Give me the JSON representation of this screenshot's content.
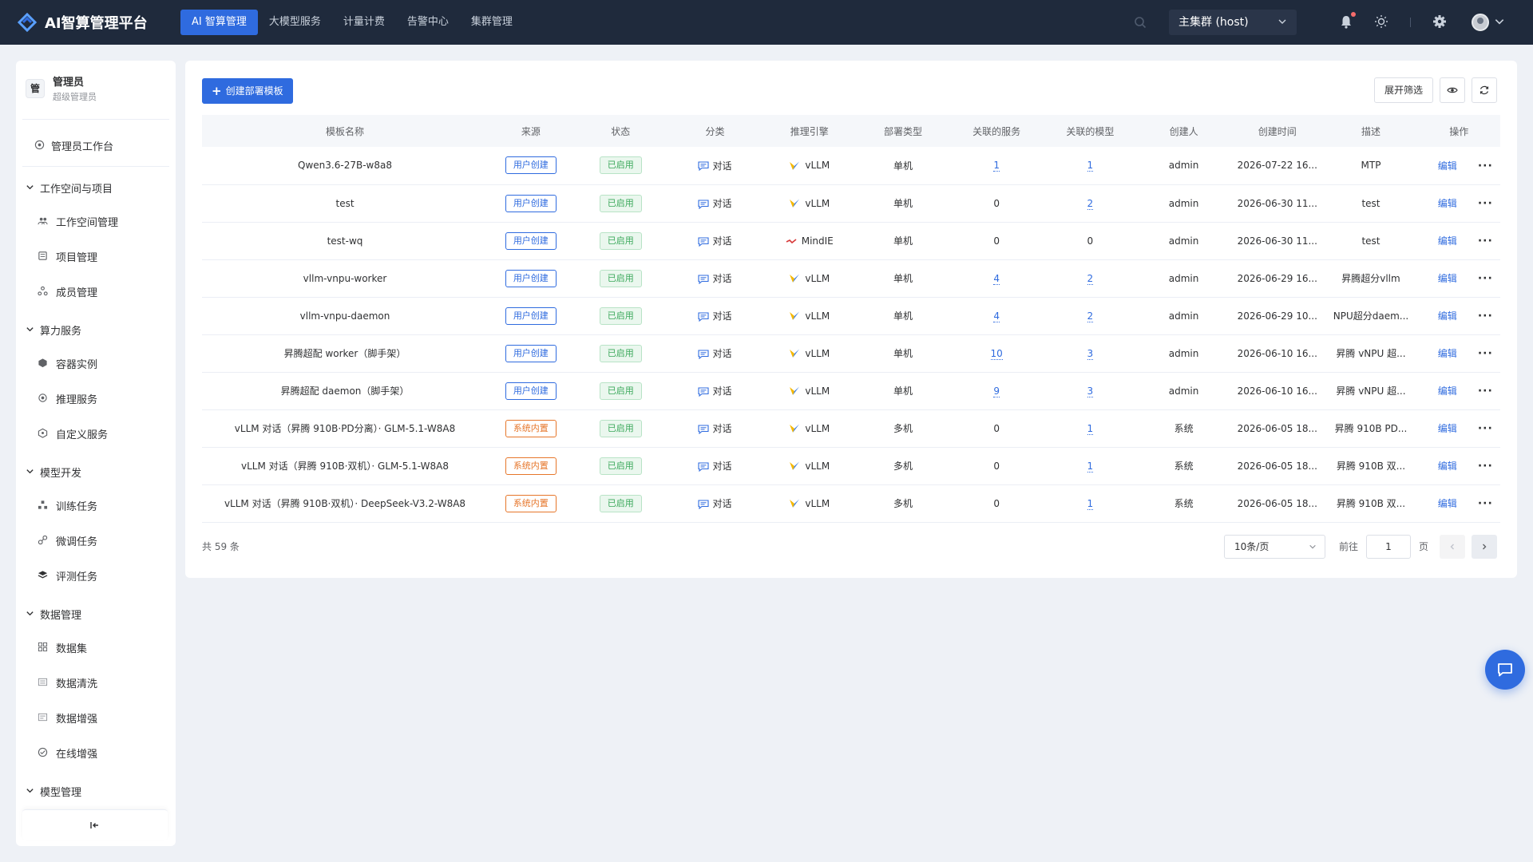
{
  "app": {
    "title": "AI智算管理平台"
  },
  "nav": [
    {
      "label": "AI 智算管理",
      "active": true
    },
    {
      "label": "大模型服务",
      "active": false
    },
    {
      "label": "计量计费",
      "active": false
    },
    {
      "label": "告警中心",
      "active": false
    },
    {
      "label": "集群管理",
      "active": false
    }
  ],
  "cluster": {
    "selected": "主集群 (host)"
  },
  "user": {
    "avatar_char": "管",
    "name": "管理员",
    "role": "超级管理员"
  },
  "sidebar": {
    "workbench": "管理员工作台",
    "groups": [
      {
        "label": "工作空间与项目",
        "items": [
          "工作空间管理",
          "项目管理",
          "成员管理"
        ]
      },
      {
        "label": "算力服务",
        "items": [
          "容器实例",
          "推理服务",
          "自定义服务"
        ]
      },
      {
        "label": "模型开发",
        "items": [
          "训练任务",
          "微调任务",
          "评测任务"
        ]
      },
      {
        "label": "数据管理",
        "items": [
          "数据集",
          "数据清洗",
          "数据增强",
          "在线增强"
        ]
      },
      {
        "label": "模型管理",
        "items": []
      }
    ]
  },
  "toolbar": {
    "create_label": "创建部署模板",
    "filter_label": "展开筛选"
  },
  "table": {
    "columns": [
      "模板名称",
      "来源",
      "状态",
      "分类",
      "推理引擎",
      "部署类型",
      "关联的服务",
      "关联的模型",
      "创建人",
      "创建时间",
      "描述",
      "操作"
    ],
    "edit_label": "编辑",
    "more_label": "···",
    "rows": [
      {
        "name": "Qwen3.6-27B-w8a8",
        "source": "用户创建",
        "source_type": "user",
        "status": "已启用",
        "category": "对话",
        "engine": "vLLM",
        "deploy": "单机",
        "services": "1",
        "services_link": true,
        "models": "1",
        "models_link": true,
        "creator": "admin",
        "created": "2026-07-22 16...",
        "desc": "MTP"
      },
      {
        "name": "test",
        "source": "用户创建",
        "source_type": "user",
        "status": "已启用",
        "category": "对话",
        "engine": "vLLM",
        "deploy": "单机",
        "services": "0",
        "services_link": false,
        "models": "2",
        "models_link": true,
        "creator": "admin",
        "created": "2026-06-30 11...",
        "desc": "test"
      },
      {
        "name": "test-wq",
        "source": "用户创建",
        "source_type": "user",
        "status": "已启用",
        "category": "对话",
        "engine": "MindIE",
        "deploy": "单机",
        "services": "0",
        "services_link": false,
        "models": "0",
        "models_link": false,
        "creator": "admin",
        "created": "2026-06-30 11...",
        "desc": "test"
      },
      {
        "name": "vllm-vnpu-worker",
        "source": "用户创建",
        "source_type": "user",
        "status": "已启用",
        "category": "对话",
        "engine": "vLLM",
        "deploy": "单机",
        "services": "4",
        "services_link": true,
        "models": "2",
        "models_link": true,
        "creator": "admin",
        "created": "2026-06-29 16...",
        "desc": "昇腾超分vllm"
      },
      {
        "name": "vllm-vnpu-daemon",
        "source": "用户创建",
        "source_type": "user",
        "status": "已启用",
        "category": "对话",
        "engine": "vLLM",
        "deploy": "单机",
        "services": "4",
        "services_link": true,
        "models": "2",
        "models_link": true,
        "creator": "admin",
        "created": "2026-06-29 10...",
        "desc": "NPU超分daem..."
      },
      {
        "name": "昇腾超配 worker（脚手架）",
        "source": "用户创建",
        "source_type": "user",
        "status": "已启用",
        "category": "对话",
        "engine": "vLLM",
        "deploy": "单机",
        "services": "10",
        "services_link": true,
        "models": "3",
        "models_link": true,
        "creator": "admin",
        "created": "2026-06-10 16...",
        "desc": "昇腾 vNPU 超..."
      },
      {
        "name": "昇腾超配 daemon（脚手架）",
        "source": "用户创建",
        "source_type": "user",
        "status": "已启用",
        "category": "对话",
        "engine": "vLLM",
        "deploy": "单机",
        "services": "9",
        "services_link": true,
        "models": "3",
        "models_link": true,
        "creator": "admin",
        "created": "2026-06-10 16...",
        "desc": "昇腾 vNPU 超..."
      },
      {
        "name": "vLLM 对话（昇腾 910B·PD分离）· GLM-5.1-W8A8",
        "source": "系统内置",
        "source_type": "sys",
        "status": "已启用",
        "category": "对话",
        "engine": "vLLM",
        "deploy": "多机",
        "services": "0",
        "services_link": false,
        "models": "1",
        "models_link": true,
        "creator": "系统",
        "created": "2026-06-05 18...",
        "desc": "昇腾 910B PD..."
      },
      {
        "name": "vLLM 对话（昇腾 910B·双机）· GLM-5.1-W8A8",
        "source": "系统内置",
        "source_type": "sys",
        "status": "已启用",
        "category": "对话",
        "engine": "vLLM",
        "deploy": "多机",
        "services": "0",
        "services_link": false,
        "models": "1",
        "models_link": true,
        "creator": "系统",
        "created": "2026-06-05 18...",
        "desc": "昇腾 910B 双..."
      },
      {
        "name": "vLLM 对话（昇腾 910B·双机）· DeepSeek-V3.2-W8A8",
        "source": "系统内置",
        "source_type": "sys",
        "status": "已启用",
        "category": "对话",
        "engine": "vLLM",
        "deploy": "多机",
        "services": "0",
        "services_link": false,
        "models": "1",
        "models_link": true,
        "creator": "系统",
        "created": "2026-06-05 18...",
        "desc": "昇腾 910B 双..."
      }
    ]
  },
  "pagination": {
    "total": "共 59 条",
    "page_size": "10条/页",
    "goto_label": "前往",
    "page_input": "1",
    "page_unit": "页"
  },
  "colors": {
    "topbar": "#1f2a3c",
    "primary": "#2f6bdf",
    "sys_tag": "#e6762a",
    "enabled_tag": "#3aa85a"
  }
}
